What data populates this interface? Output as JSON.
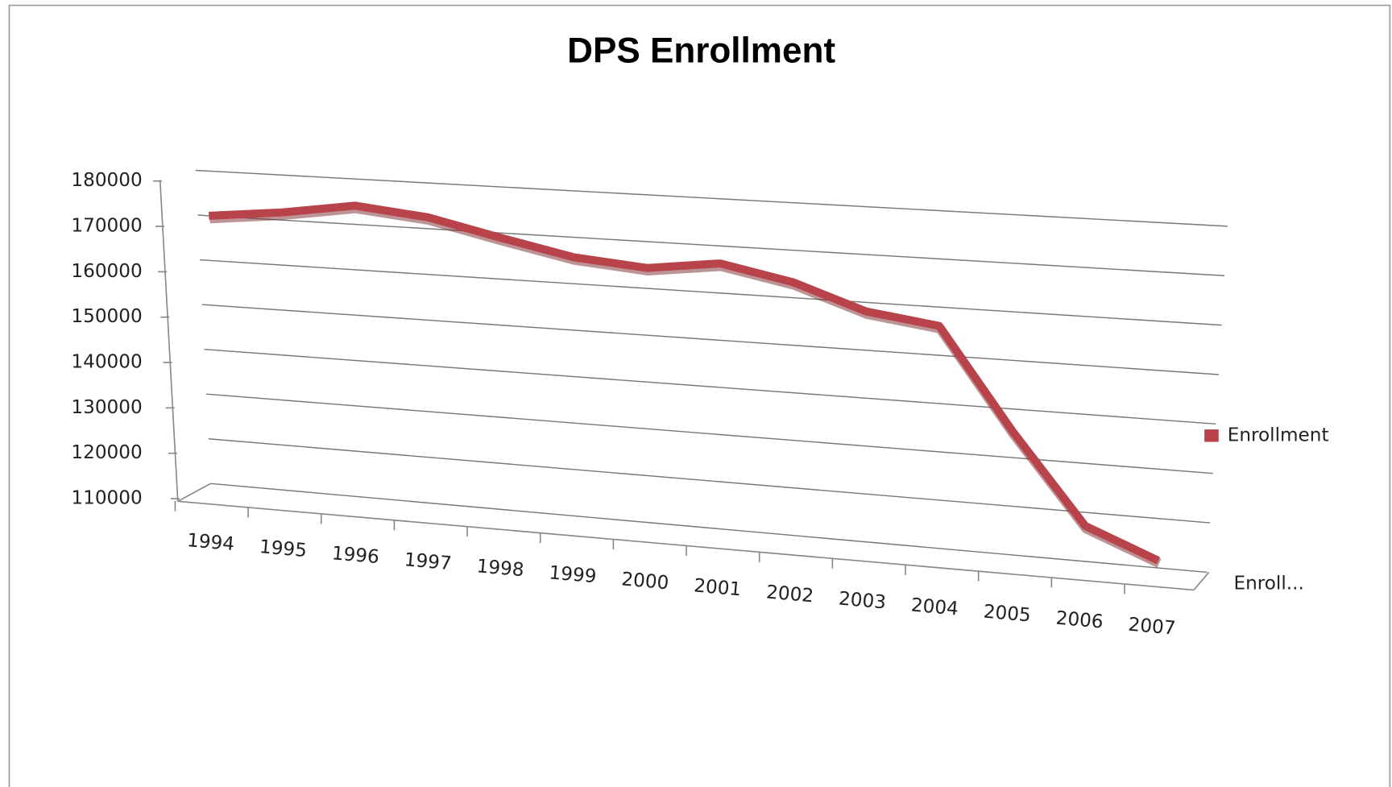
{
  "chart_data": {
    "type": "line",
    "title": "DPS Enrollment",
    "categories": [
      "1994",
      "1995",
      "1996",
      "1997",
      "1998",
      "1999",
      "2000",
      "2001",
      "2002",
      "2003",
      "2004",
      "2005",
      "2006",
      "2007"
    ],
    "series": [
      {
        "name": "Enrollment",
        "color": "#b8434a",
        "values": [
          173500,
          175200,
          177600,
          176000,
          172500,
          169300,
          168000,
          169900,
          166900,
          161800,
          159800,
          139300,
          121100,
          115300
        ]
      }
    ],
    "ylim": [
      110000,
      180000
    ],
    "yticks": [
      110000,
      120000,
      130000,
      140000,
      150000,
      160000,
      170000,
      180000
    ],
    "grid": true,
    "legend": "right",
    "depth_axis_label": "Enroll..."
  }
}
